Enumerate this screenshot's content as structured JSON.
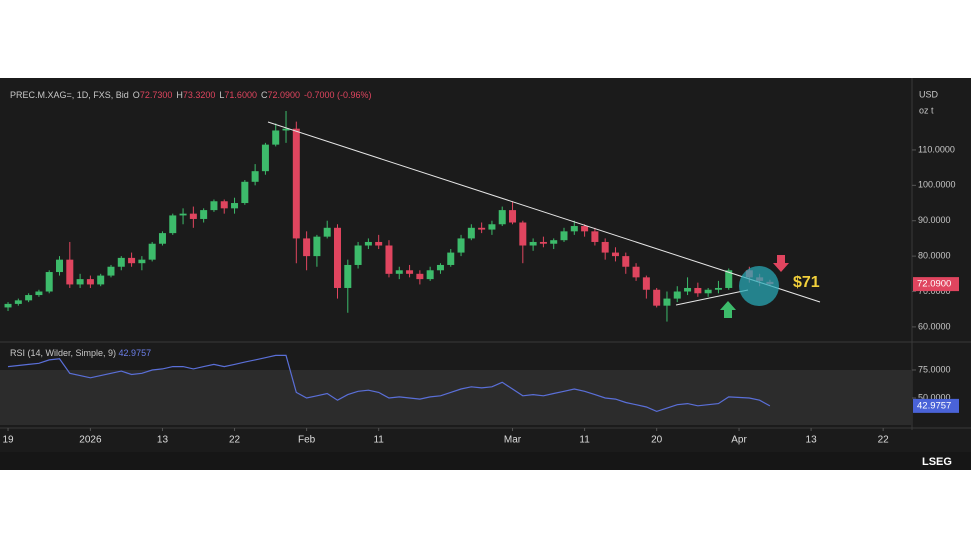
{
  "header": {
    "symbol": "PREC.M.XAG=, 1D, FXS, Bid",
    "ohlc": [
      [
        "O",
        "72.7300"
      ],
      [
        "H",
        "73.3200"
      ],
      [
        "L",
        "71.6000"
      ],
      [
        "C",
        "72.0900"
      ]
    ],
    "change": "-0.7000 (-0.96%)"
  },
  "chart_data": {
    "type": "candlestick",
    "x": [
      0,
      1,
      2,
      3,
      4,
      5,
      6,
      7,
      8,
      9,
      10,
      11,
      12,
      13,
      14,
      15,
      16,
      17,
      18,
      19,
      20,
      21,
      22,
      23,
      24,
      25,
      26,
      27,
      28,
      29,
      30,
      31,
      32,
      33,
      34,
      35,
      36,
      37,
      38,
      39,
      40,
      41,
      42,
      43,
      44,
      45,
      46,
      47,
      48,
      49,
      50,
      51,
      52,
      53,
      54,
      55,
      56,
      57,
      58,
      59,
      60,
      61,
      62,
      63,
      64,
      65,
      66,
      67,
      68,
      69,
      70,
      72,
      73,
      74
    ],
    "open": [
      65.5,
      66.5,
      67.5,
      69,
      70,
      75.5,
      79,
      72,
      73.5,
      72,
      74.5,
      77,
      79.5,
      78,
      79,
      83.5,
      86.5,
      91.5,
      92,
      90.5,
      93,
      95.5,
      93.5,
      95,
      101,
      104,
      111.5,
      115.5,
      116,
      85,
      80,
      85.5,
      88,
      71,
      77.5,
      83,
      84,
      83,
      75,
      76,
      75,
      73.5,
      76,
      77.5,
      81,
      85,
      88,
      87.5,
      89,
      93,
      89.5,
      83,
      84,
      83.5,
      84.5,
      87,
      88.5,
      87,
      84,
      81,
      80,
      77,
      74,
      70.5,
      66,
      68,
      70,
      71,
      69.5,
      70.5,
      71,
      76,
      74,
      72.73
    ],
    "high": [
      67,
      68,
      69.5,
      70.5,
      76,
      80,
      84,
      75,
      74.5,
      75,
      77.5,
      80,
      81,
      80,
      84,
      87,
      92,
      93.5,
      94,
      93.5,
      96,
      96,
      96.5,
      101.5,
      106,
      112,
      117.5,
      121,
      118,
      87,
      86,
      90,
      89,
      79,
      84,
      85,
      86,
      84.5,
      77,
      77.5,
      76,
      77,
      78,
      82,
      86,
      89,
      89.5,
      90,
      94,
      95.5,
      90,
      85,
      85.5,
      85,
      88,
      90,
      89,
      88,
      85,
      82.5,
      81,
      78,
      74.5,
      71,
      70,
      71.5,
      74,
      72.5,
      71,
      73,
      76.5,
      77,
      75,
      73.32
    ],
    "low": [
      64.5,
      66,
      67,
      68.5,
      69.5,
      74.5,
      71,
      71,
      71,
      71.5,
      74,
      76,
      77,
      76,
      78.5,
      83,
      86,
      89,
      88,
      89.5,
      92.5,
      92,
      92,
      94.5,
      100,
      103,
      111,
      112,
      78,
      76,
      77,
      85,
      68,
      64,
      76.5,
      82,
      82,
      74,
      73.5,
      74,
      72,
      73,
      75,
      77,
      80,
      84.5,
      86.5,
      86,
      88.5,
      89,
      78,
      81.5,
      82.5,
      82,
      84,
      86,
      85.5,
      83,
      79,
      78.5,
      75,
      73,
      68,
      65.5,
      61.5,
      67,
      69,
      68.5,
      68.5,
      69.5,
      70.5,
      72.5,
      71.5,
      71.6
    ],
    "close": [
      66.5,
      67.5,
      69,
      70,
      75.5,
      79,
      72,
      73.5,
      72,
      74.5,
      77,
      79.5,
      78,
      79,
      83.5,
      86.5,
      91.5,
      92,
      90.5,
      93,
      95.5,
      93.5,
      95,
      101,
      104,
      111.5,
      115.5,
      116,
      85,
      80,
      85.5,
      88,
      71,
      77.5,
      83,
      84,
      83,
      75,
      76,
      75,
      73.5,
      76,
      77.5,
      81,
      85,
      88,
      87.5,
      89,
      93,
      89.5,
      83,
      84,
      83.5,
      84.5,
      87,
      88.5,
      87,
      84,
      81,
      80,
      77,
      74,
      70.5,
      66,
      68,
      70,
      71,
      69.5,
      70.5,
      71,
      76,
      74,
      73,
      72.09
    ],
    "up_color": "#3dbb6b",
    "down_color": "#e0455f",
    "xlim": [
      -0.78,
      87.8
    ],
    "xticks": [
      {
        "value": 0,
        "label": "19"
      },
      {
        "value": 8,
        "label": "2026"
      },
      {
        "value": 15,
        "label": "13"
      },
      {
        "value": 22,
        "label": "22"
      },
      {
        "value": 29,
        "label": "Feb"
      },
      {
        "value": 36,
        "label": "11"
      },
      {
        "value": 49,
        "label": "Mar"
      },
      {
        "value": 56,
        "label": "11"
      },
      {
        "value": 63,
        "label": "20"
      },
      {
        "value": 71,
        "label": "Apr"
      },
      {
        "value": 78,
        "label": "13"
      },
      {
        "value": 85,
        "label": "22"
      }
    ],
    "ylim": [
      56.3,
      127.5
    ],
    "yticks": [
      {
        "value": 60,
        "label": "60.0000"
      },
      {
        "value": 70,
        "label": "70.0000"
      },
      {
        "value": 80,
        "label": "80.0000"
      },
      {
        "value": 90,
        "label": "90.0000"
      },
      {
        "value": 100,
        "label": "100.0000"
      },
      {
        "value": 110,
        "label": "110.0000"
      }
    ],
    "currency": "USD",
    "unit": "oz t",
    "last_label": "72.0900",
    "annotation": "$71",
    "rsi": {
      "label": "RSI (14, Wilder, Simple, 9)",
      "color": "#5a6fd8",
      "values": [
        78,
        79,
        80,
        81,
        84,
        85,
        72,
        70,
        68,
        70,
        72,
        74,
        71,
        72,
        75,
        76,
        78,
        78,
        76,
        78,
        80,
        78,
        80,
        82,
        84,
        86,
        88,
        88,
        55,
        50,
        52,
        54,
        48,
        53,
        56,
        57,
        55,
        50,
        51,
        50,
        49,
        51,
        52,
        55,
        58,
        60,
        59,
        60,
        64,
        58,
        52,
        53,
        52,
        54,
        56,
        58,
        56,
        53,
        50,
        49,
        46,
        44,
        42,
        38,
        41,
        44,
        45,
        43,
        44,
        45,
        51,
        50,
        48,
        42.9757
      ],
      "last_label": "42.9757",
      "ylim": [
        25.9,
        97.3
      ],
      "yticks": [
        {
          "value": 75,
          "label": "75.0000"
        },
        {
          "value": 50,
          "label": "50.0000"
        }
      ]
    }
  },
  "footer": {
    "brand": "LSEG"
  }
}
